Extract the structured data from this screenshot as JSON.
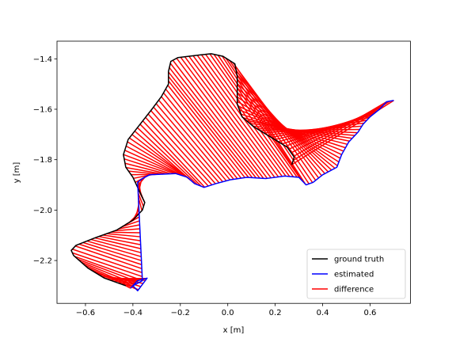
{
  "chart_data": {
    "type": "line",
    "title": "",
    "xlabel": "x [m]",
    "ylabel": "y [m]",
    "xlim": [
      -0.72,
      0.77
    ],
    "ylim": [
      -2.37,
      -1.33
    ],
    "xticks": [
      -0.6,
      -0.4,
      -0.2,
      0.0,
      0.2,
      0.4,
      0.6
    ],
    "xtick_labels": [
      "−0.6",
      "−0.4",
      "−0.2",
      "0.0",
      "0.2",
      "0.4",
      "0.6"
    ],
    "yticks": [
      -2.2,
      -2.0,
      -1.8,
      -1.6,
      -1.4
    ],
    "ytick_labels": [
      "−2.2",
      "−2.0",
      "−1.8",
      "−1.6",
      "−1.4"
    ],
    "grid": false,
    "legend_position": "bottom-right",
    "series": [
      {
        "name": "ground truth",
        "color": "#000000",
        "points": [
          [
            -0.43,
            -2.3
          ],
          [
            -0.52,
            -2.27
          ],
          [
            -0.59,
            -2.23
          ],
          [
            -0.65,
            -2.18
          ],
          [
            -0.66,
            -2.16
          ],
          [
            -0.64,
            -2.14
          ],
          [
            -0.56,
            -2.11
          ],
          [
            -0.47,
            -2.08
          ],
          [
            -0.4,
            -2.04
          ],
          [
            -0.36,
            -2.0
          ],
          [
            -0.35,
            -1.97
          ],
          [
            -0.37,
            -1.93
          ],
          [
            -0.4,
            -1.87
          ],
          [
            -0.43,
            -1.83
          ],
          [
            -0.44,
            -1.78
          ],
          [
            -0.42,
            -1.72
          ],
          [
            -0.37,
            -1.66
          ],
          [
            -0.32,
            -1.6
          ],
          [
            -0.28,
            -1.55
          ],
          [
            -0.25,
            -1.5
          ],
          [
            -0.25,
            -1.45
          ],
          [
            -0.24,
            -1.41
          ],
          [
            -0.21,
            -1.395
          ],
          [
            -0.12,
            -1.385
          ],
          [
            -0.07,
            -1.38
          ],
          [
            -0.02,
            -1.39
          ],
          [
            0.03,
            -1.42
          ],
          [
            0.04,
            -1.47
          ],
          [
            0.04,
            -1.53
          ],
          [
            0.04,
            -1.58
          ],
          [
            0.06,
            -1.63
          ],
          [
            0.11,
            -1.67
          ],
          [
            0.18,
            -1.71
          ],
          [
            0.25,
            -1.75
          ],
          [
            0.28,
            -1.79
          ],
          [
            0.27,
            -1.82
          ]
        ]
      },
      {
        "name": "estimated",
        "color": "#0000ff",
        "points": [
          [
            -0.41,
            -2.31
          ],
          [
            -0.38,
            -2.28
          ],
          [
            -0.34,
            -2.27
          ],
          [
            -0.38,
            -2.32
          ],
          [
            -0.4,
            -2.3
          ],
          [
            -0.36,
            -2.28
          ],
          [
            -0.38,
            -1.89
          ],
          [
            -0.36,
            -1.875
          ],
          [
            -0.33,
            -1.86
          ],
          [
            -0.22,
            -1.855
          ],
          [
            -0.17,
            -1.87
          ],
          [
            -0.14,
            -1.895
          ],
          [
            -0.1,
            -1.91
          ],
          [
            -0.05,
            -1.895
          ],
          [
            0.01,
            -1.88
          ],
          [
            0.08,
            -1.87
          ],
          [
            0.16,
            -1.875
          ],
          [
            0.24,
            -1.865
          ],
          [
            0.3,
            -1.87
          ],
          [
            0.33,
            -1.9
          ],
          [
            0.36,
            -1.89
          ],
          [
            0.4,
            -1.86
          ],
          [
            0.46,
            -1.83
          ],
          [
            0.48,
            -1.78
          ],
          [
            0.51,
            -1.73
          ],
          [
            0.55,
            -1.69
          ],
          [
            0.57,
            -1.66
          ],
          [
            0.6,
            -1.63
          ],
          [
            0.64,
            -1.6
          ],
          [
            0.67,
            -1.57
          ],
          [
            0.7,
            -1.565
          ]
        ]
      }
    ],
    "difference_legend": {
      "name": "difference",
      "color": "#ff0000"
    }
  }
}
